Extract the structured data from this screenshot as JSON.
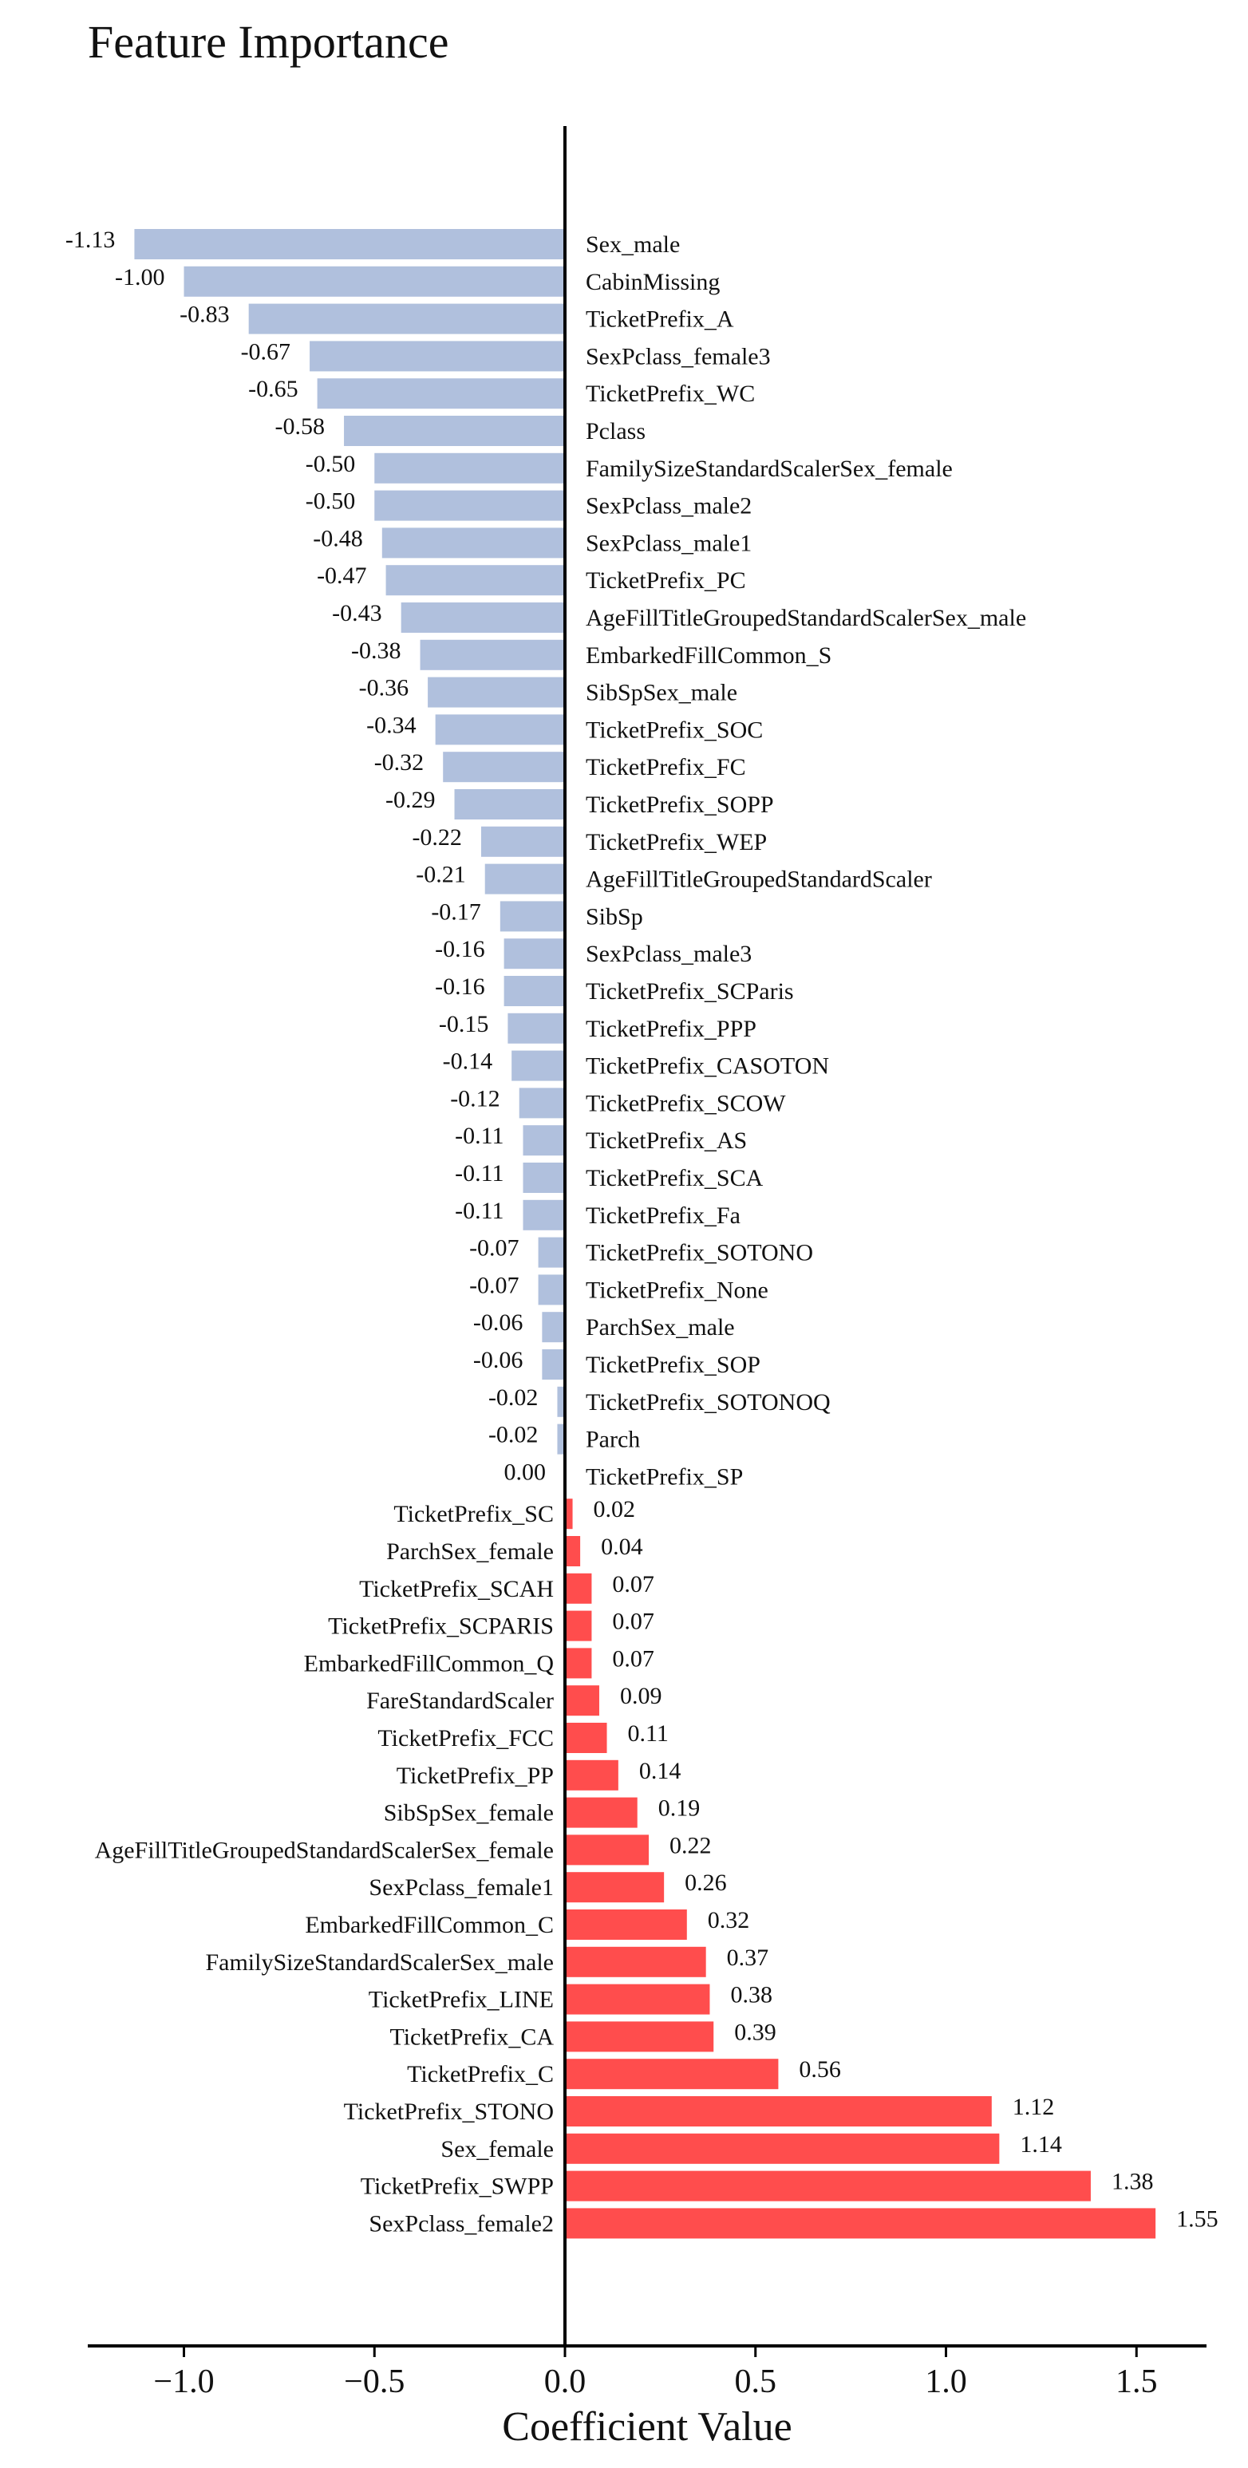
{
  "chart_data": {
    "type": "bar",
    "orientation": "horizontal",
    "title": "Feature Importance",
    "xlabel": "Coefficient Value",
    "ylabel": "",
    "xlim": [
      -1.25,
      1.7
    ],
    "xticks": [
      -1.0,
      -0.5,
      0.0,
      0.5,
      1.0,
      1.5
    ],
    "xtick_labels": [
      "−1.0",
      "−0.5",
      "0.0",
      "0.5",
      "1.0",
      "1.5"
    ],
    "grid": false,
    "colors": {
      "negative": "#b0c0dd",
      "positive": "#ff4d4d",
      "axis": "#000000"
    },
    "categories": [
      "Sex_male",
      "CabinMissing",
      "TicketPrefix_A",
      "SexPclass_female3",
      "TicketPrefix_WC",
      "Pclass",
      "FamilySizeStandardScalerSex_female",
      "SexPclass_male2",
      "SexPclass_male1",
      "TicketPrefix_PC",
      "AgeFillTitleGroupedStandardScalerSex_male",
      "EmbarkedFillCommon_S",
      "SibSpSex_male",
      "TicketPrefix_SOC",
      "TicketPrefix_FC",
      "TicketPrefix_SOPP",
      "TicketPrefix_WEP",
      "AgeFillTitleGroupedStandardScaler",
      "SibSp",
      "SexPclass_male3",
      "TicketPrefix_SCParis",
      "TicketPrefix_PPP",
      "TicketPrefix_CASOTON",
      "TicketPrefix_SCOW",
      "TicketPrefix_AS",
      "TicketPrefix_SCA",
      "TicketPrefix_Fa",
      "TicketPrefix_SOTONO",
      "TicketPrefix_None",
      "ParchSex_male",
      "TicketPrefix_SOP",
      "TicketPrefix_SOTONOQ",
      "Parch",
      "TicketPrefix_SP",
      "TicketPrefix_SC",
      "ParchSex_female",
      "TicketPrefix_SCAH",
      "TicketPrefix_SCPARIS",
      "EmbarkedFillCommon_Q",
      "FareStandardScaler",
      "TicketPrefix_FCC",
      "TicketPrefix_PP",
      "SibSpSex_female",
      "AgeFillTitleGroupedStandardScalerSex_female",
      "SexPclass_female1",
      "EmbarkedFillCommon_C",
      "FamilySizeStandardScalerSex_male",
      "TicketPrefix_LINE",
      "TicketPrefix_CA",
      "TicketPrefix_C",
      "TicketPrefix_STONO",
      "Sex_female",
      "TicketPrefix_SWPP",
      "SexPclass_female2"
    ],
    "values": [
      -1.13,
      -1.0,
      -0.83,
      -0.67,
      -0.65,
      -0.58,
      -0.5,
      -0.5,
      -0.48,
      -0.47,
      -0.43,
      -0.38,
      -0.36,
      -0.34,
      -0.32,
      -0.29,
      -0.22,
      -0.21,
      -0.17,
      -0.16,
      -0.16,
      -0.15,
      -0.14,
      -0.12,
      -0.11,
      -0.11,
      -0.11,
      -0.07,
      -0.07,
      -0.06,
      -0.06,
      -0.02,
      -0.02,
      0.0,
      0.02,
      0.04,
      0.07,
      0.07,
      0.07,
      0.09,
      0.11,
      0.14,
      0.19,
      0.22,
      0.26,
      0.32,
      0.37,
      0.38,
      0.39,
      0.56,
      1.12,
      1.14,
      1.38,
      1.55
    ],
    "value_labels": [
      "-1.13",
      "-1.00",
      "-0.83",
      "-0.67",
      "-0.65",
      "-0.58",
      "-0.50",
      "-0.50",
      "-0.48",
      "-0.47",
      "-0.43",
      "-0.38",
      "-0.36",
      "-0.34",
      "-0.32",
      "-0.29",
      "-0.22",
      "-0.21",
      "-0.17",
      "-0.16",
      "-0.16",
      "-0.15",
      "-0.14",
      "-0.12",
      "-0.11",
      "-0.11",
      "-0.11",
      "-0.07",
      "-0.07",
      "-0.06",
      "-0.06",
      "-0.02",
      "-0.02",
      "0.00",
      "0.02",
      "0.04",
      "0.07",
      "0.07",
      "0.07",
      "0.09",
      "0.11",
      "0.14",
      "0.19",
      "0.22",
      "0.26",
      "0.32",
      "0.37",
      "0.38",
      "0.39",
      "0.56",
      "1.12",
      "1.14",
      "1.38",
      "1.55"
    ]
  }
}
